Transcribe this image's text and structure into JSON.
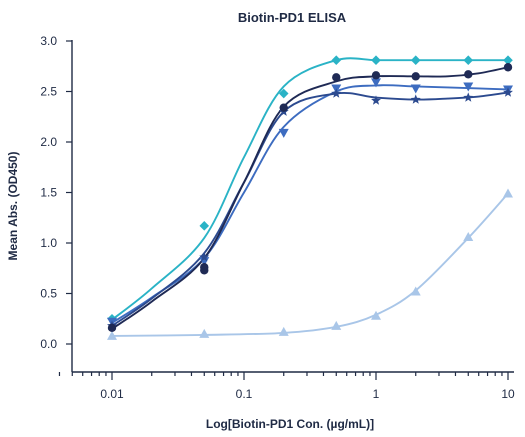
{
  "chart_data": {
    "type": "line",
    "title": "Biotin-PD1 ELISA",
    "xlabel": "Log[Biotin-PD1 Con. (µg/mL)]",
    "ylabel": "Mean Abs. (OD450)",
    "x_scale": "log",
    "xlim": [
      0.004,
      11
    ],
    "ylim": [
      -0.1,
      3.0
    ],
    "x_ticks": [
      0.01,
      0.1,
      1,
      10
    ],
    "x_tick_labels": [
      "0.01",
      "0.1",
      "1",
      "10"
    ],
    "y_ticks": [
      0.0,
      0.5,
      1.0,
      1.5,
      2.0,
      2.5,
      3.0
    ],
    "y_tick_labels": [
      "0.0",
      "0.5",
      "1.0",
      "1.5",
      "2.0",
      "2.5",
      "3.0"
    ],
    "grid": false,
    "series": [
      {
        "marker": "diamond",
        "color": "#2ab3c6",
        "x": [
          0.01,
          0.05,
          0.2,
          0.5,
          1,
          2,
          5,
          10
        ],
        "y": [
          0.25,
          1.17,
          2.48,
          2.81,
          2.81,
          2.81,
          2.81,
          2.81
        ],
        "curve": [
          0.24,
          0.55,
          1.05,
          1.85,
          2.55,
          2.81,
          2.81,
          2.81,
          2.81,
          2.81,
          2.81
        ]
      },
      {
        "marker": "circle",
        "color": "#1f2a55",
        "x": [
          0.01,
          0.05,
          0.05,
          0.2,
          0.5,
          1,
          2,
          5,
          10
        ],
        "y": [
          0.16,
          0.73,
          0.76,
          2.34,
          2.64,
          2.66,
          2.65,
          2.67,
          2.74
        ],
        "curve": [
          0.15,
          0.42,
          0.85,
          1.6,
          2.35,
          2.6,
          2.65,
          2.65,
          2.65,
          2.68,
          2.74
        ]
      },
      {
        "marker": "star",
        "color": "#2c4a8f",
        "x": [
          0.01,
          0.05,
          0.2,
          0.5,
          1,
          2,
          5,
          10
        ],
        "y": [
          0.18,
          0.86,
          2.3,
          2.48,
          2.41,
          2.42,
          2.44,
          2.49
        ],
        "curve": [
          0.18,
          0.45,
          0.9,
          1.6,
          2.3,
          2.48,
          2.44,
          2.42,
          2.43,
          2.45,
          2.49
        ]
      },
      {
        "marker": "triangle-down",
        "color": "#3d6cc0",
        "x": [
          0.01,
          0.05,
          0.2,
          0.5,
          1,
          2,
          5,
          10
        ],
        "y": [
          0.22,
          0.82,
          2.09,
          2.53,
          2.59,
          2.53,
          2.55,
          2.52
        ],
        "curve": [
          0.21,
          0.46,
          0.85,
          1.5,
          2.15,
          2.5,
          2.56,
          2.55,
          2.54,
          2.53,
          2.52
        ]
      },
      {
        "marker": "triangle-up",
        "color": "#a9c6e8",
        "x": [
          0.01,
          0.05,
          0.2,
          0.5,
          1,
          2,
          5,
          10
        ],
        "y": [
          0.08,
          0.1,
          0.12,
          0.18,
          0.28,
          0.52,
          1.06,
          1.49
        ],
        "curve_x": [
          0.01,
          0.05,
          0.2,
          0.5,
          1,
          2,
          5,
          10
        ],
        "curve": [
          0.08,
          0.09,
          0.11,
          0.17,
          0.29,
          0.53,
          1.05,
          1.49
        ]
      }
    ]
  }
}
